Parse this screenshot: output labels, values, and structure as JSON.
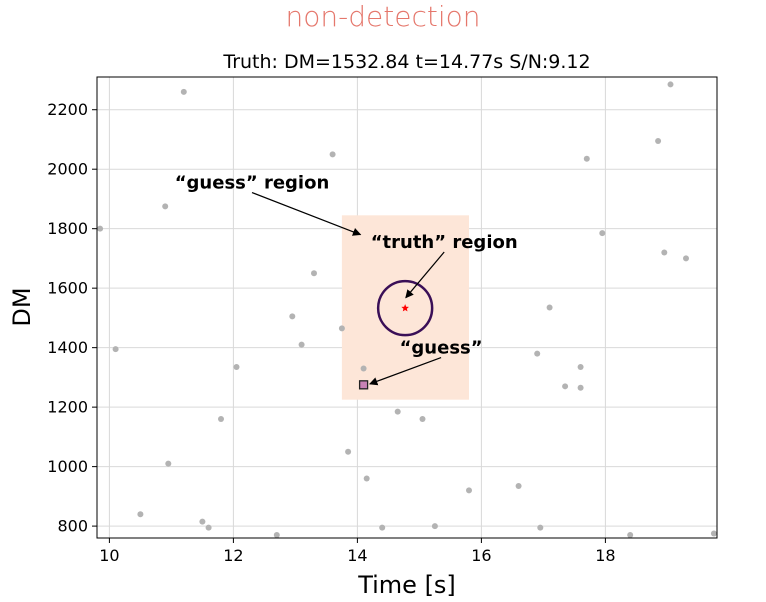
{
  "figure": {
    "top_title": "non-detection",
    "top_title_color": "#e5776c"
  },
  "chart_data": {
    "type": "scatter",
    "title": "Truth: DM=1532.84  t=14.77s  S/N:9.12",
    "xlabel": "Time [s]",
    "ylabel": "DM",
    "xlim": [
      9.8,
      19.8
    ],
    "ylim": [
      760,
      2310
    ],
    "xticks": [
      10,
      12,
      14,
      16,
      18
    ],
    "yticks": [
      800,
      1000,
      1200,
      1400,
      1600,
      1800,
      2000,
      2200
    ],
    "grid": true,
    "background_points": {
      "color": "#b3b3b3",
      "x": [
        9.85,
        10.1,
        10.5,
        10.9,
        10.95,
        11.2,
        11.5,
        11.6,
        11.8,
        12.05,
        12.7,
        12.95,
        13.1,
        13.3,
        13.6,
        13.75,
        13.85,
        14.1,
        14.15,
        14.4,
        14.65,
        15.05,
        15.25,
        15.8,
        16.6,
        16.9,
        16.95,
        17.1,
        17.35,
        17.6,
        17.6,
        17.7,
        17.95,
        18.4,
        18.85,
        18.95,
        19.05,
        19.3,
        19.75
      ],
      "y": [
        1800,
        1395,
        840,
        1875,
        1010,
        2260,
        815,
        795,
        1160,
        1335,
        770,
        1505,
        1410,
        1650,
        2050,
        1465,
        1050,
        1330,
        960,
        795,
        1185,
        1160,
        800,
        920,
        935,
        1380,
        795,
        1535,
        1270,
        1335,
        1265,
        2035,
        1785,
        770,
        2095,
        1720,
        2285,
        1700,
        775
      ]
    },
    "truth": {
      "x": 14.77,
      "y": 1532.84,
      "marker_color": "#ff0000",
      "circle_color": "#3a0f57"
    },
    "guess": {
      "x": 14.1,
      "y": 1275,
      "fill": "#c882b5",
      "edge": "#222222"
    },
    "guess_region": {
      "x0": 13.75,
      "x1": 15.8,
      "y0": 1225,
      "y1": 1845,
      "color": "#fde6d8"
    },
    "annotations": [
      {
        "text": "“guess” region",
        "text_x": 12.3,
        "text_y": 1935,
        "arrow_to_x": 14.05,
        "arrow_to_y": 1780
      },
      {
        "text": "“truth” region",
        "text_x": 15.4,
        "text_y": 1735,
        "arrow_to_x": 14.78,
        "arrow_to_y": 1568
      },
      {
        "text": "“guess”",
        "text_x": 15.35,
        "text_y": 1380,
        "arrow_to_x": 14.2,
        "arrow_to_y": 1278
      }
    ]
  }
}
